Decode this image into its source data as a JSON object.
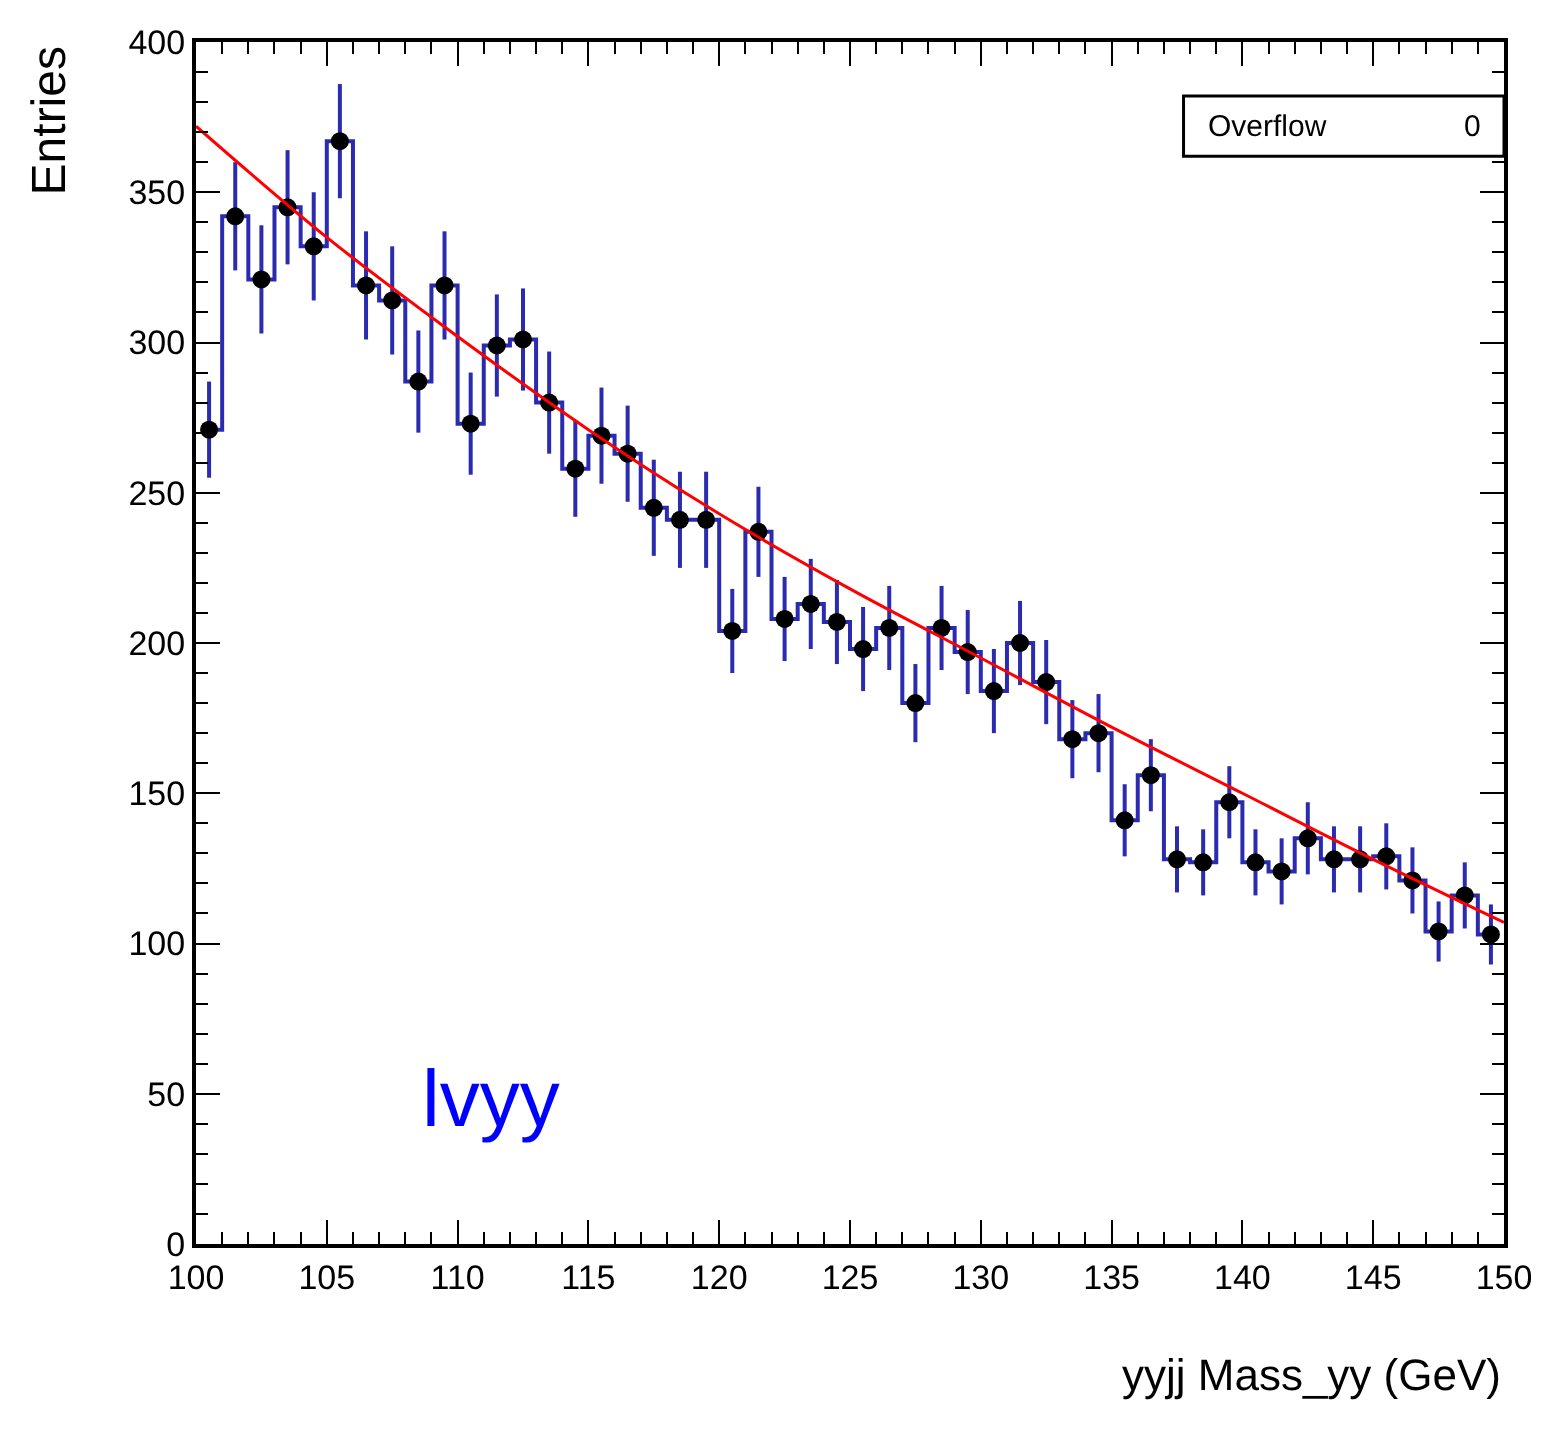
{
  "chart_data": {
    "type": "step",
    "xlabel": "yyjj Mass_yy (GeV)",
    "ylabel": "Entries",
    "annotations": [
      "Overflow",
      "0",
      "lvyy"
    ],
    "xlim": [
      100,
      150
    ],
    "xticks": [
      100,
      105,
      110,
      115,
      120,
      125,
      130,
      135,
      140,
      145,
      150
    ],
    "ylim": [
      0,
      400
    ],
    "yticks": [
      0,
      50,
      100,
      150,
      200,
      250,
      300,
      350,
      400
    ],
    "series": [
      {
        "color": "#2b2bb0",
        "marker": "circle",
        "x": [
          100.5,
          101.5,
          102.5,
          103.5,
          104.5,
          105.5,
          106.5,
          107.5,
          108.5,
          109.5,
          110.5,
          111.5,
          112.5,
          113.5,
          114.5,
          115.5,
          116.5,
          117.5,
          118.5,
          119.5,
          120.5,
          121.5,
          122.5,
          123.5,
          124.5,
          125.5,
          126.5,
          127.5,
          128.5,
          129.5,
          130.5,
          131.5,
          132.5,
          133.5,
          134.5,
          135.5,
          136.5,
          137.5,
          138.5,
          139.5,
          140.5,
          141.5,
          142.5,
          143.5,
          144.5,
          145.5,
          146.5,
          147.5,
          148.5,
          149.5
        ],
        "values": [
          271,
          342,
          321,
          345,
          332,
          367,
          319,
          314,
          287,
          319,
          273,
          299,
          301,
          280,
          258,
          269,
          263,
          245,
          241,
          241,
          204,
          237,
          208,
          213,
          207,
          198,
          205,
          180,
          205,
          197,
          184,
          200,
          187,
          168,
          170,
          141,
          156,
          128,
          127,
          147,
          127,
          124,
          135,
          128,
          128,
          129,
          121,
          104,
          116,
          103
        ],
        "errors": [
          16,
          18,
          18,
          19,
          18,
          19,
          18,
          18,
          17,
          18,
          17,
          17,
          17,
          17,
          16,
          16,
          16,
          16,
          16,
          16,
          14,
          15,
          14,
          15,
          14,
          14,
          14,
          13,
          14,
          14,
          14,
          14,
          14,
          13,
          13,
          12,
          12,
          11,
          11,
          12,
          11,
          11,
          12,
          11,
          11,
          11,
          11,
          10,
          11,
          10
        ]
      },
      {
        "type": "line",
        "color": "#ff0000",
        "x": [
          100,
          105,
          110,
          115,
          120,
          125,
          130,
          135,
          140,
          145,
          150
        ],
        "values": [
          372,
          335,
          302,
          271,
          243,
          218,
          195,
          172,
          150,
          128,
          107
        ]
      }
    ]
  }
}
